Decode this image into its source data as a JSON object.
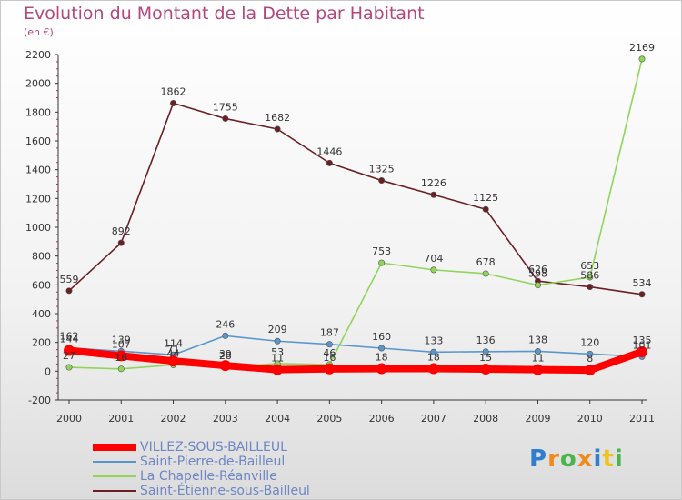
{
  "chart_data": {
    "type": "line",
    "title": "Evolution du Montant de la Dette par Habitant",
    "subtitle": "(en €)",
    "x": [
      "2000",
      "2001",
      "2002",
      "2003",
      "2004",
      "2005",
      "2006",
      "2007",
      "2008",
      "2009",
      "2010",
      "2011"
    ],
    "ylim": [
      -200,
      2200
    ],
    "yticks": [
      -200,
      0,
      200,
      400,
      600,
      800,
      1000,
      1200,
      1400,
      1600,
      1800,
      2000,
      2200
    ],
    "grid": false,
    "legend_position": "bottom-left",
    "series": [
      {
        "name": "Saint-Étienne-sous-Bailleul",
        "color": "#6b1f24",
        "values": [
          559,
          892,
          1862,
          1755,
          1682,
          1446,
          1325,
          1226,
          1125,
          626,
          586,
          534
        ]
      },
      {
        "name": "La Chapelle-Réanville",
        "color": "#8fd55a",
        "values": [
          27,
          16,
          44,
          28,
          53,
          46,
          753,
          704,
          678,
          598,
          653,
          2169
        ]
      },
      {
        "name": "Saint-Pierre-de-Bailleul",
        "color": "#5a96cc",
        "values": [
          162,
          139,
          114,
          246,
          209,
          187,
          160,
          133,
          136,
          138,
          120,
          101
        ]
      },
      {
        "name": "VILLEZ-SOUS-BAILLEUL",
        "color": "#ff0000",
        "values": [
          144,
          107,
          71,
          39,
          11,
          16,
          18,
          18,
          15,
          11,
          8,
          135
        ]
      }
    ]
  },
  "legend": [
    {
      "label": "VILLEZ-SOUS-BAILLEUL",
      "color": "#ff0000",
      "thickness": 8
    },
    {
      "label": "Saint-Pierre-de-Bailleul",
      "color": "#5a96cc",
      "thickness": 2
    },
    {
      "label": "La Chapelle-Réanville",
      "color": "#8fd55a",
      "thickness": 2
    },
    {
      "label": "Saint-Étienne-sous-Bailleul",
      "color": "#6b1f24",
      "thickness": 2
    }
  ],
  "logo": {
    "letters": [
      "P",
      "r",
      "o",
      "x",
      "i",
      "t",
      "i"
    ],
    "colors": [
      "#2f7fd0",
      "#f08a1c",
      "#49b54a",
      "#f08a1c",
      "#2f7fd0",
      "#f2c21c",
      "#49b54a"
    ]
  }
}
